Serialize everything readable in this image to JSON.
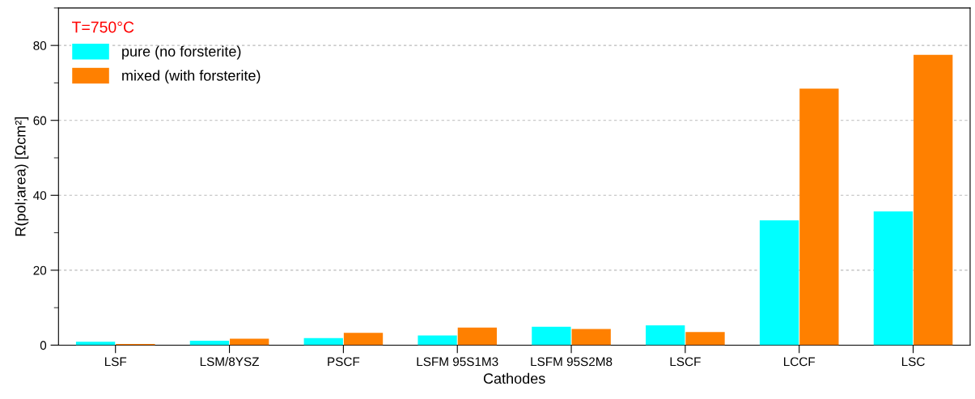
{
  "chart_data": {
    "type": "bar",
    "xlabel": "Cathodes",
    "ylabel": "R(pol;area) [Ωcm²]",
    "categories": [
      "LSF",
      "LSM/8YSZ",
      "PSCF",
      "LSFM 95S1M3",
      "LSFM 95S2M8",
      "LSCF",
      "LCCF",
      "LSC"
    ],
    "series": [
      {
        "name": "pure (no forsterite)",
        "color": "#00ffff",
        "values": [
          0.9,
          1.2,
          1.9,
          2.6,
          4.9,
          5.3,
          33.3,
          35.7
        ]
      },
      {
        "name": "mixed (with forsterite)",
        "color": "#ff8000",
        "values": [
          0.3,
          1.7,
          3.3,
          4.7,
          4.3,
          3.5,
          68.5,
          77.5
        ]
      }
    ],
    "legend_title": "T=750°C",
    "legend": "top left",
    "grid": "y",
    "ylim": [
      0,
      90
    ],
    "yticks": [
      0,
      20,
      40,
      60,
      80
    ]
  }
}
